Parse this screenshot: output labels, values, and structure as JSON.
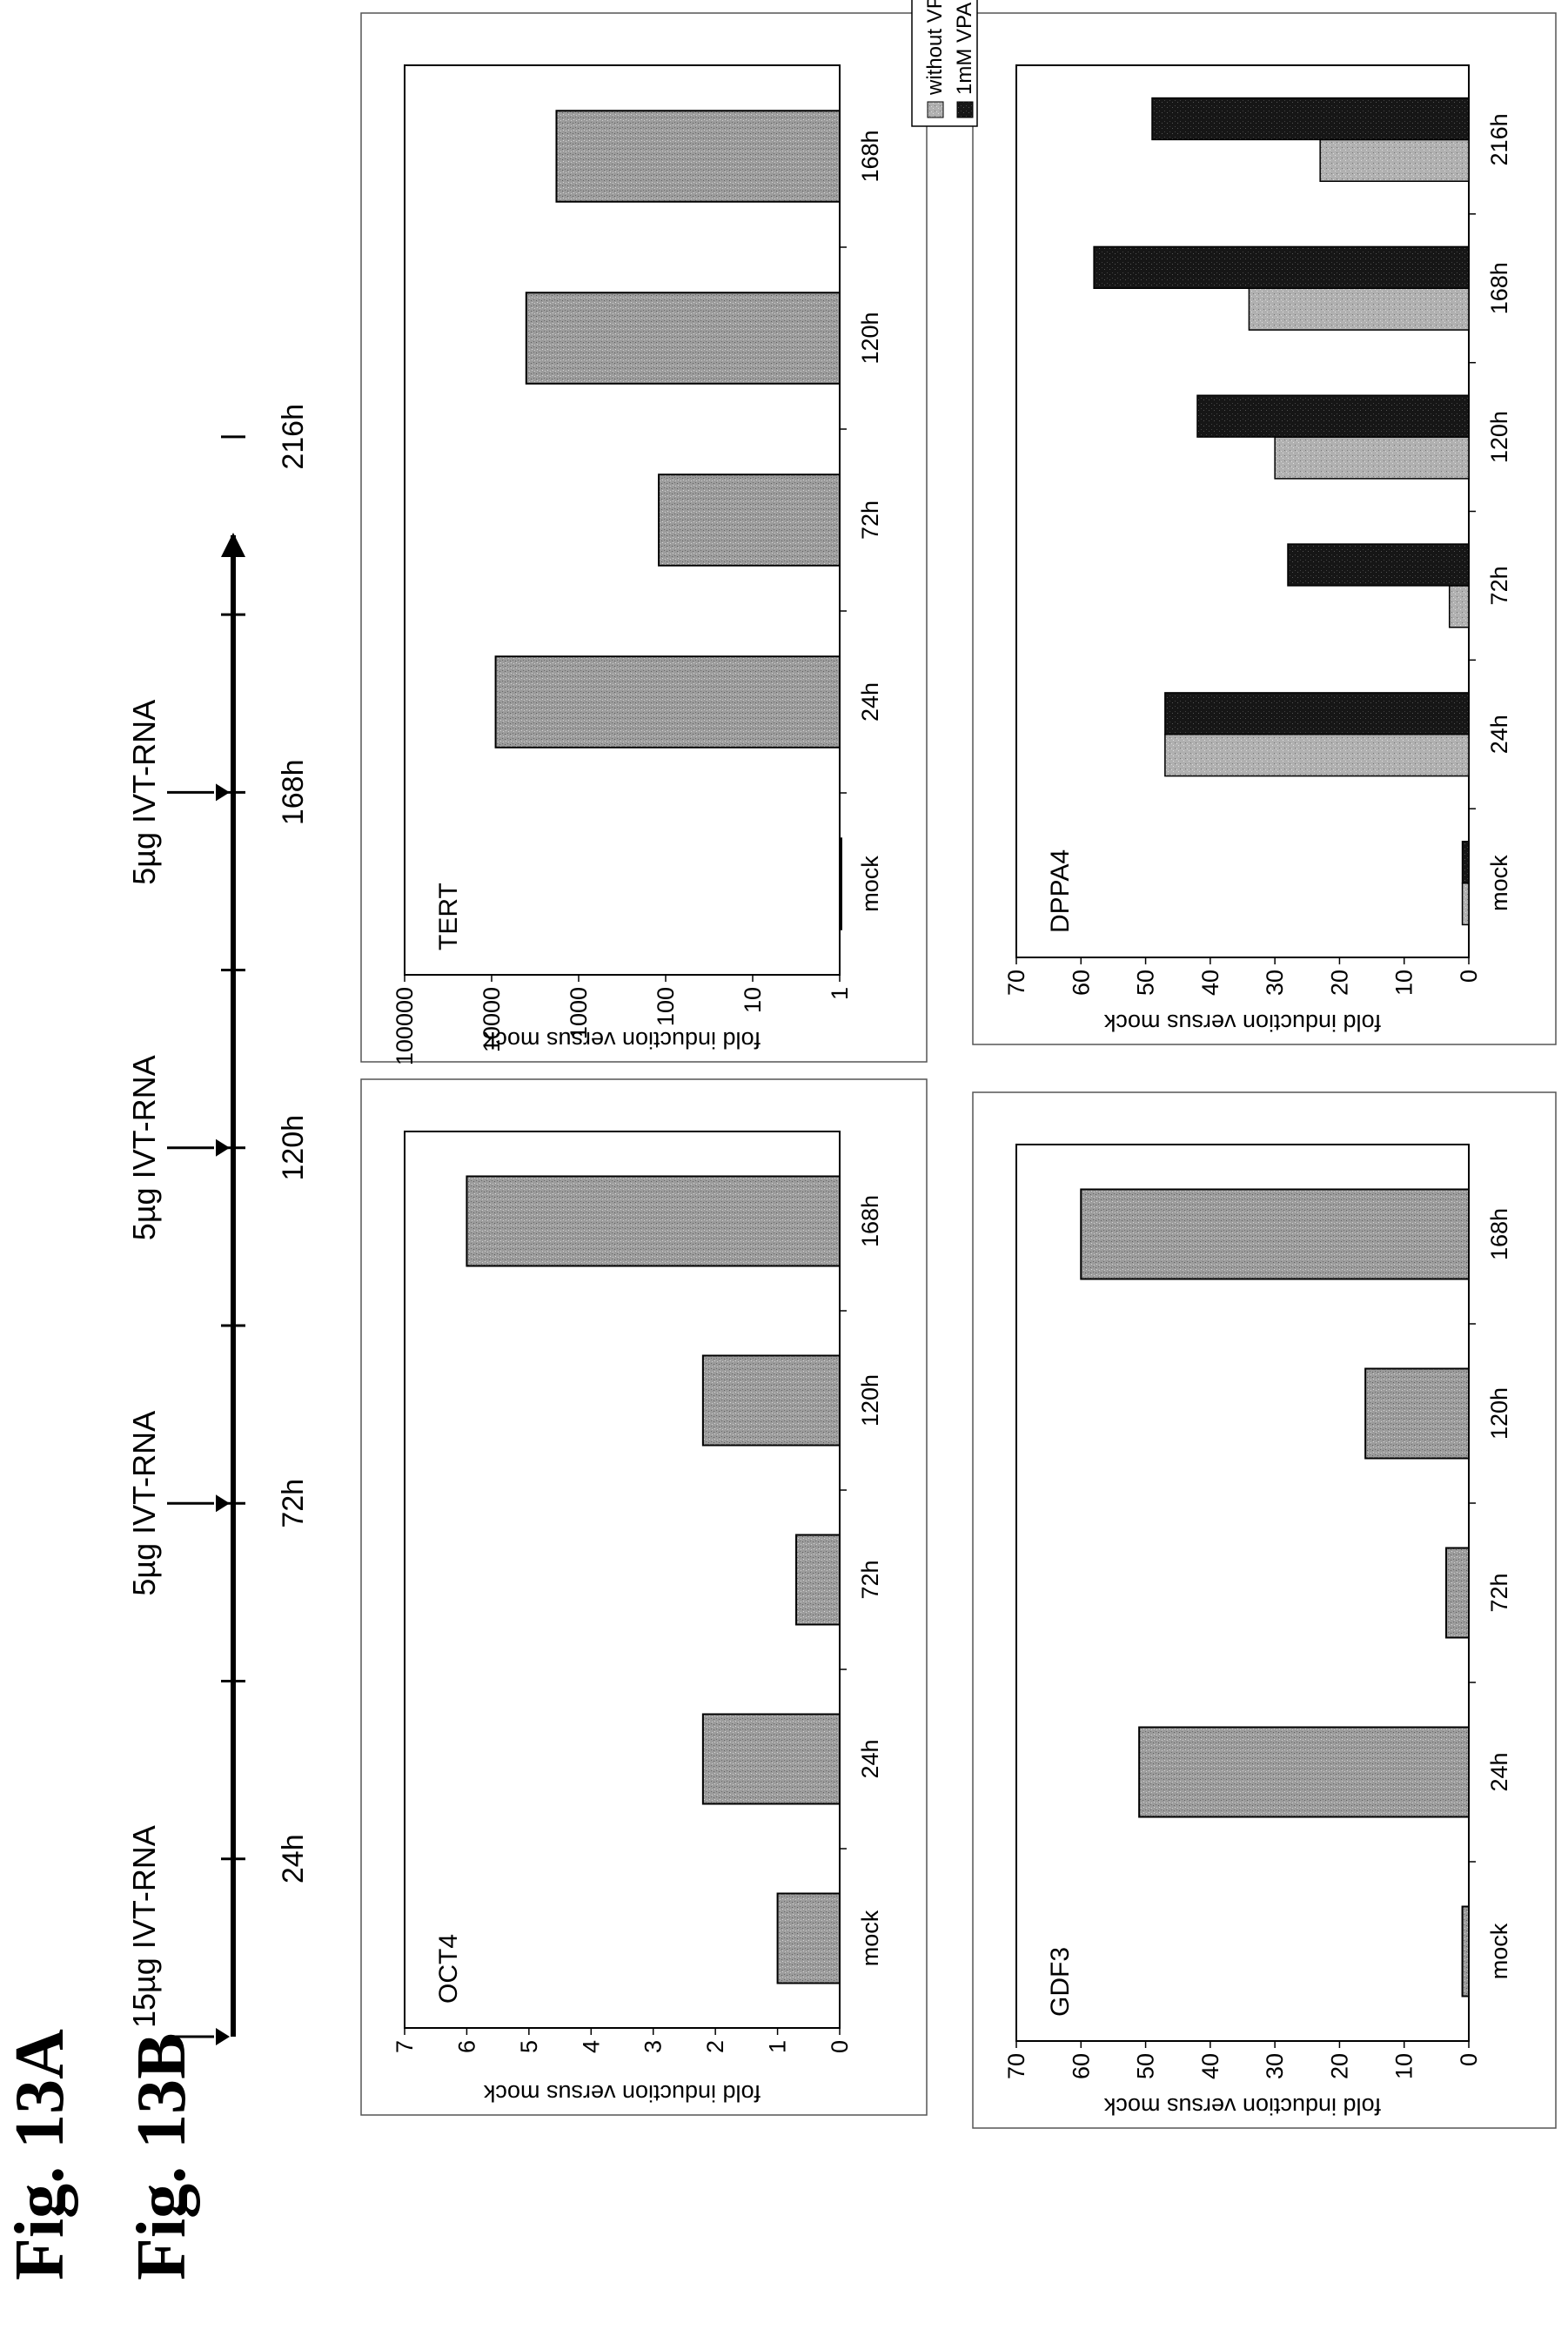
{
  "figure": {
    "label_a": "Fig. 13A",
    "label_b": "Fig. 13B"
  },
  "timeline": {
    "time_points": [
      "24h",
      "72h",
      "120h",
      "168h",
      "216h"
    ],
    "injections": [
      {
        "time": "0h",
        "label": "15µg IVT-RNA"
      },
      {
        "time": "72h",
        "label": "5µg IVT-RNA"
      },
      {
        "time": "120h",
        "label": "5µg IVT-RNA"
      },
      {
        "time": "168h",
        "label": "5µg IVT-RNA"
      }
    ]
  },
  "chart_data": [
    {
      "id": "oct4",
      "type": "bar",
      "title": "OCT4",
      "ylabel": "fold induction versus mock",
      "ylim": [
        0,
        7
      ],
      "yscale": "linear",
      "yticks": [
        0,
        1,
        2,
        3,
        4,
        5,
        6,
        7
      ],
      "categories": [
        "mock",
        "24h",
        "72h",
        "120h",
        "168h"
      ],
      "values": [
        1,
        2.2,
        0.7,
        2.2,
        6
      ],
      "colors": [
        "#9a9a9a"
      ]
    },
    {
      "id": "tert",
      "type": "bar",
      "title": "TERT",
      "ylabel": "fold induction versus mock",
      "ylim": [
        1,
        100000
      ],
      "yscale": "log",
      "yticks": [
        1,
        10,
        100,
        1000,
        10000,
        100000
      ],
      "categories": [
        "mock",
        "24h",
        "72h",
        "120h",
        "168h"
      ],
      "values": [
        1,
        9000,
        120,
        4000,
        1800
      ],
      "colors": [
        "#9a9a9a"
      ]
    },
    {
      "id": "gdf3",
      "type": "bar",
      "title": "GDF3",
      "ylabel": "fold induction versus mock",
      "ylim": [
        0,
        70
      ],
      "yscale": "linear",
      "yticks": [
        0,
        10,
        20,
        30,
        40,
        50,
        60,
        70
      ],
      "categories": [
        "mock",
        "24h",
        "72h",
        "120h",
        "168h"
      ],
      "values": [
        1,
        51,
        3.5,
        16,
        60
      ],
      "colors": [
        "#9a9a9a"
      ]
    },
    {
      "id": "dppa4",
      "type": "bar",
      "title": "DPPA4",
      "ylabel": "fold induction versus mock",
      "ylim": [
        0,
        70
      ],
      "yscale": "linear",
      "yticks": [
        0,
        10,
        20,
        30,
        40,
        50,
        60,
        70
      ],
      "categories": [
        "mock",
        "24h",
        "72h",
        "120h",
        "168h",
        "216h"
      ],
      "series": [
        {
          "name": "without VPA",
          "values": [
            1,
            47,
            3,
            30,
            34,
            23
          ]
        },
        {
          "name": "1mM VPA",
          "values": [
            1,
            47,
            28,
            42,
            58,
            49
          ]
        }
      ],
      "colors": [
        "#a8a8a8",
        "#1a1a1a"
      ],
      "legend": "top-right"
    }
  ]
}
